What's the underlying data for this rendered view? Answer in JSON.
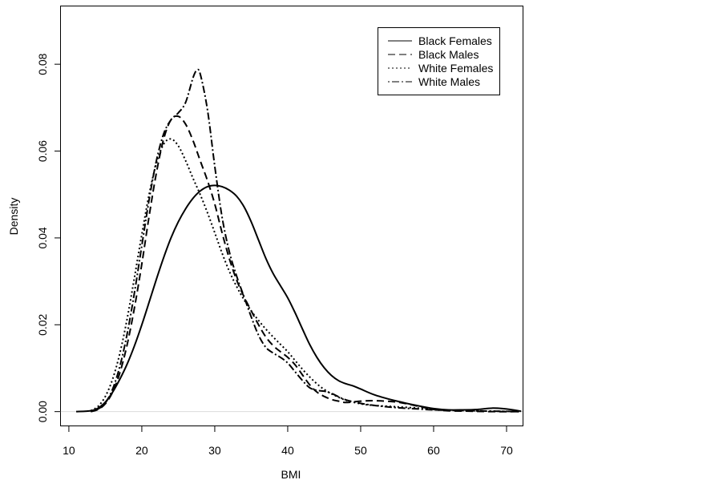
{
  "chart_data": {
    "type": "line",
    "title": "",
    "xlabel": "BMI",
    "ylabel": "Density",
    "xlim": [
      8.8,
      72.2
    ],
    "ylim": [
      -0.0032,
      0.0935
    ],
    "x_ticks": [
      10,
      20,
      30,
      40,
      50,
      60,
      70
    ],
    "y_ticks": [
      0.0,
      0.02,
      0.04,
      0.06,
      0.08
    ],
    "x_tick_labels": [
      "10",
      "20",
      "30",
      "40",
      "50",
      "60",
      "70"
    ],
    "y_tick_labels": [
      "0.00",
      "0.02",
      "0.04",
      "0.06",
      "0.08"
    ],
    "zero_line": true,
    "grid": false,
    "legend_position": "top-right",
    "series": [
      {
        "name": "Black Females",
        "dash": "solid",
        "x": [
          11,
          13,
          14,
          15,
          16,
          17,
          18,
          19,
          20,
          21,
          22,
          23,
          24,
          25,
          26,
          27,
          28,
          29,
          30,
          31,
          32,
          33,
          34,
          35,
          36,
          37,
          38,
          39,
          40,
          41,
          42,
          43,
          44,
          45,
          46,
          47,
          48,
          49,
          50,
          52,
          55,
          58,
          60,
          62,
          64,
          66,
          68,
          70,
          72
        ],
        "y": [
          0.0,
          0.0002,
          0.0008,
          0.0022,
          0.0045,
          0.0075,
          0.011,
          0.0152,
          0.02,
          0.0252,
          0.0305,
          0.0355,
          0.04,
          0.0437,
          0.0467,
          0.0491,
          0.0508,
          0.0518,
          0.0521,
          0.0518,
          0.051,
          0.0496,
          0.0472,
          0.0437,
          0.0395,
          0.0353,
          0.0318,
          0.029,
          0.0262,
          0.0228,
          0.0191,
          0.0155,
          0.0125,
          0.0101,
          0.0083,
          0.0071,
          0.0064,
          0.0059,
          0.0052,
          0.0038,
          0.0024,
          0.0013,
          0.0007,
          0.0004,
          0.0004,
          0.0005,
          0.0008,
          0.0006,
          0.0001
        ]
      },
      {
        "name": "Black Males",
        "dash": "long-dash",
        "x": [
          13,
          14,
          15,
          16,
          17,
          18,
          19,
          20,
          21,
          22,
          23,
          24,
          25,
          26,
          27,
          28,
          29,
          30,
          31,
          32,
          33,
          34,
          35,
          36,
          37,
          38,
          39,
          40,
          41,
          42,
          43,
          44,
          45,
          46,
          47,
          48,
          50,
          52,
          55,
          58,
          60,
          62,
          65,
          68,
          72
        ],
        "y": [
          0.0,
          0.0005,
          0.0018,
          0.0045,
          0.009,
          0.0155,
          0.024,
          0.034,
          0.045,
          0.055,
          0.0628,
          0.0672,
          0.068,
          0.0662,
          0.0625,
          0.0578,
          0.0532,
          0.0478,
          0.0412,
          0.0352,
          0.0303,
          0.0265,
          0.0232,
          0.02,
          0.0172,
          0.0152,
          0.0138,
          0.0125,
          0.0108,
          0.0085,
          0.0062,
          0.0045,
          0.0035,
          0.0028,
          0.0024,
          0.0021,
          0.0024,
          0.0025,
          0.0022,
          0.0012,
          0.0005,
          0.0002,
          0.0001,
          0.0,
          0.0
        ]
      },
      {
        "name": "White Females",
        "dash": "dotted",
        "x": [
          13,
          14,
          15,
          16,
          17,
          18,
          19,
          20,
          21,
          22,
          23,
          24,
          25,
          26,
          27,
          28,
          29,
          30,
          31,
          32,
          33,
          34,
          35,
          36,
          37,
          38,
          39,
          40,
          41,
          42,
          43,
          44,
          45,
          46,
          47,
          48,
          50,
          52,
          55,
          58,
          60,
          65,
          72
        ],
        "y": [
          0.0002,
          0.0012,
          0.0035,
          0.0075,
          0.0135,
          0.0215,
          0.031,
          0.0408,
          0.05,
          0.0572,
          0.0616,
          0.0628,
          0.0612,
          0.0578,
          0.0538,
          0.05,
          0.0458,
          0.0412,
          0.0365,
          0.0323,
          0.0288,
          0.0258,
          0.0232,
          0.021,
          0.019,
          0.0172,
          0.0155,
          0.0138,
          0.0118,
          0.0098,
          0.008,
          0.0064,
          0.0051,
          0.0041,
          0.0033,
          0.0026,
          0.0018,
          0.0014,
          0.0011,
          0.0008,
          0.0005,
          0.0002,
          0.0
        ]
      },
      {
        "name": "White Males",
        "dash": "dot-dash",
        "x": [
          13,
          14,
          15,
          16,
          17,
          18,
          19,
          20,
          21,
          22,
          23,
          24,
          25,
          26,
          27,
          27.5,
          28,
          29,
          30,
          31,
          32,
          33,
          34,
          35,
          36,
          37,
          38,
          39,
          40,
          41,
          42,
          43,
          44,
          45,
          46,
          47,
          48,
          50,
          52,
          55,
          58,
          60,
          65,
          72
        ],
        "y": [
          0.0,
          0.0006,
          0.002,
          0.0052,
          0.0105,
          0.018,
          0.0275,
          0.0382,
          0.0488,
          0.0578,
          0.064,
          0.0672,
          0.0688,
          0.0712,
          0.0768,
          0.0785,
          0.0778,
          0.0695,
          0.0565,
          0.0448,
          0.0368,
          0.0312,
          0.0265,
          0.0218,
          0.0176,
          0.0148,
          0.0135,
          0.0125,
          0.0112,
          0.0092,
          0.0072,
          0.0055,
          0.0049,
          0.0047,
          0.0042,
          0.0034,
          0.0027,
          0.0019,
          0.0014,
          0.0009,
          0.0006,
          0.0004,
          0.0002,
          0.0
        ]
      }
    ]
  }
}
